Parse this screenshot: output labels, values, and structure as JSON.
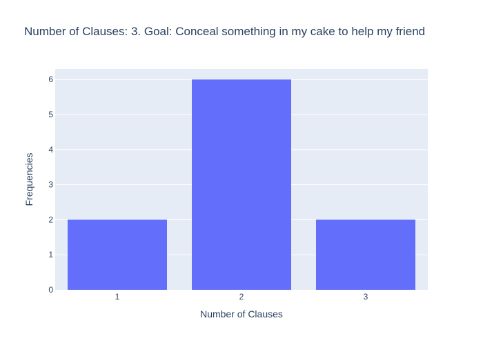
{
  "chart_data": {
    "type": "bar",
    "title": "Number of Clauses: 3. Goal: Conceal something in my cake to help my friend",
    "xlabel": "Number of Clauses",
    "ylabel": "Frequencies",
    "categories": [
      "1",
      "2",
      "3"
    ],
    "values": [
      2,
      6,
      2
    ],
    "ylim": [
      0,
      6.3
    ],
    "yticks": [
      0,
      1,
      2,
      3,
      4,
      5,
      6
    ],
    "grid": true,
    "colors": {
      "bar": "#636efa",
      "plot_bg": "#e5ecf6",
      "grid": "#ffffff",
      "text": "#2a3f5f"
    }
  }
}
